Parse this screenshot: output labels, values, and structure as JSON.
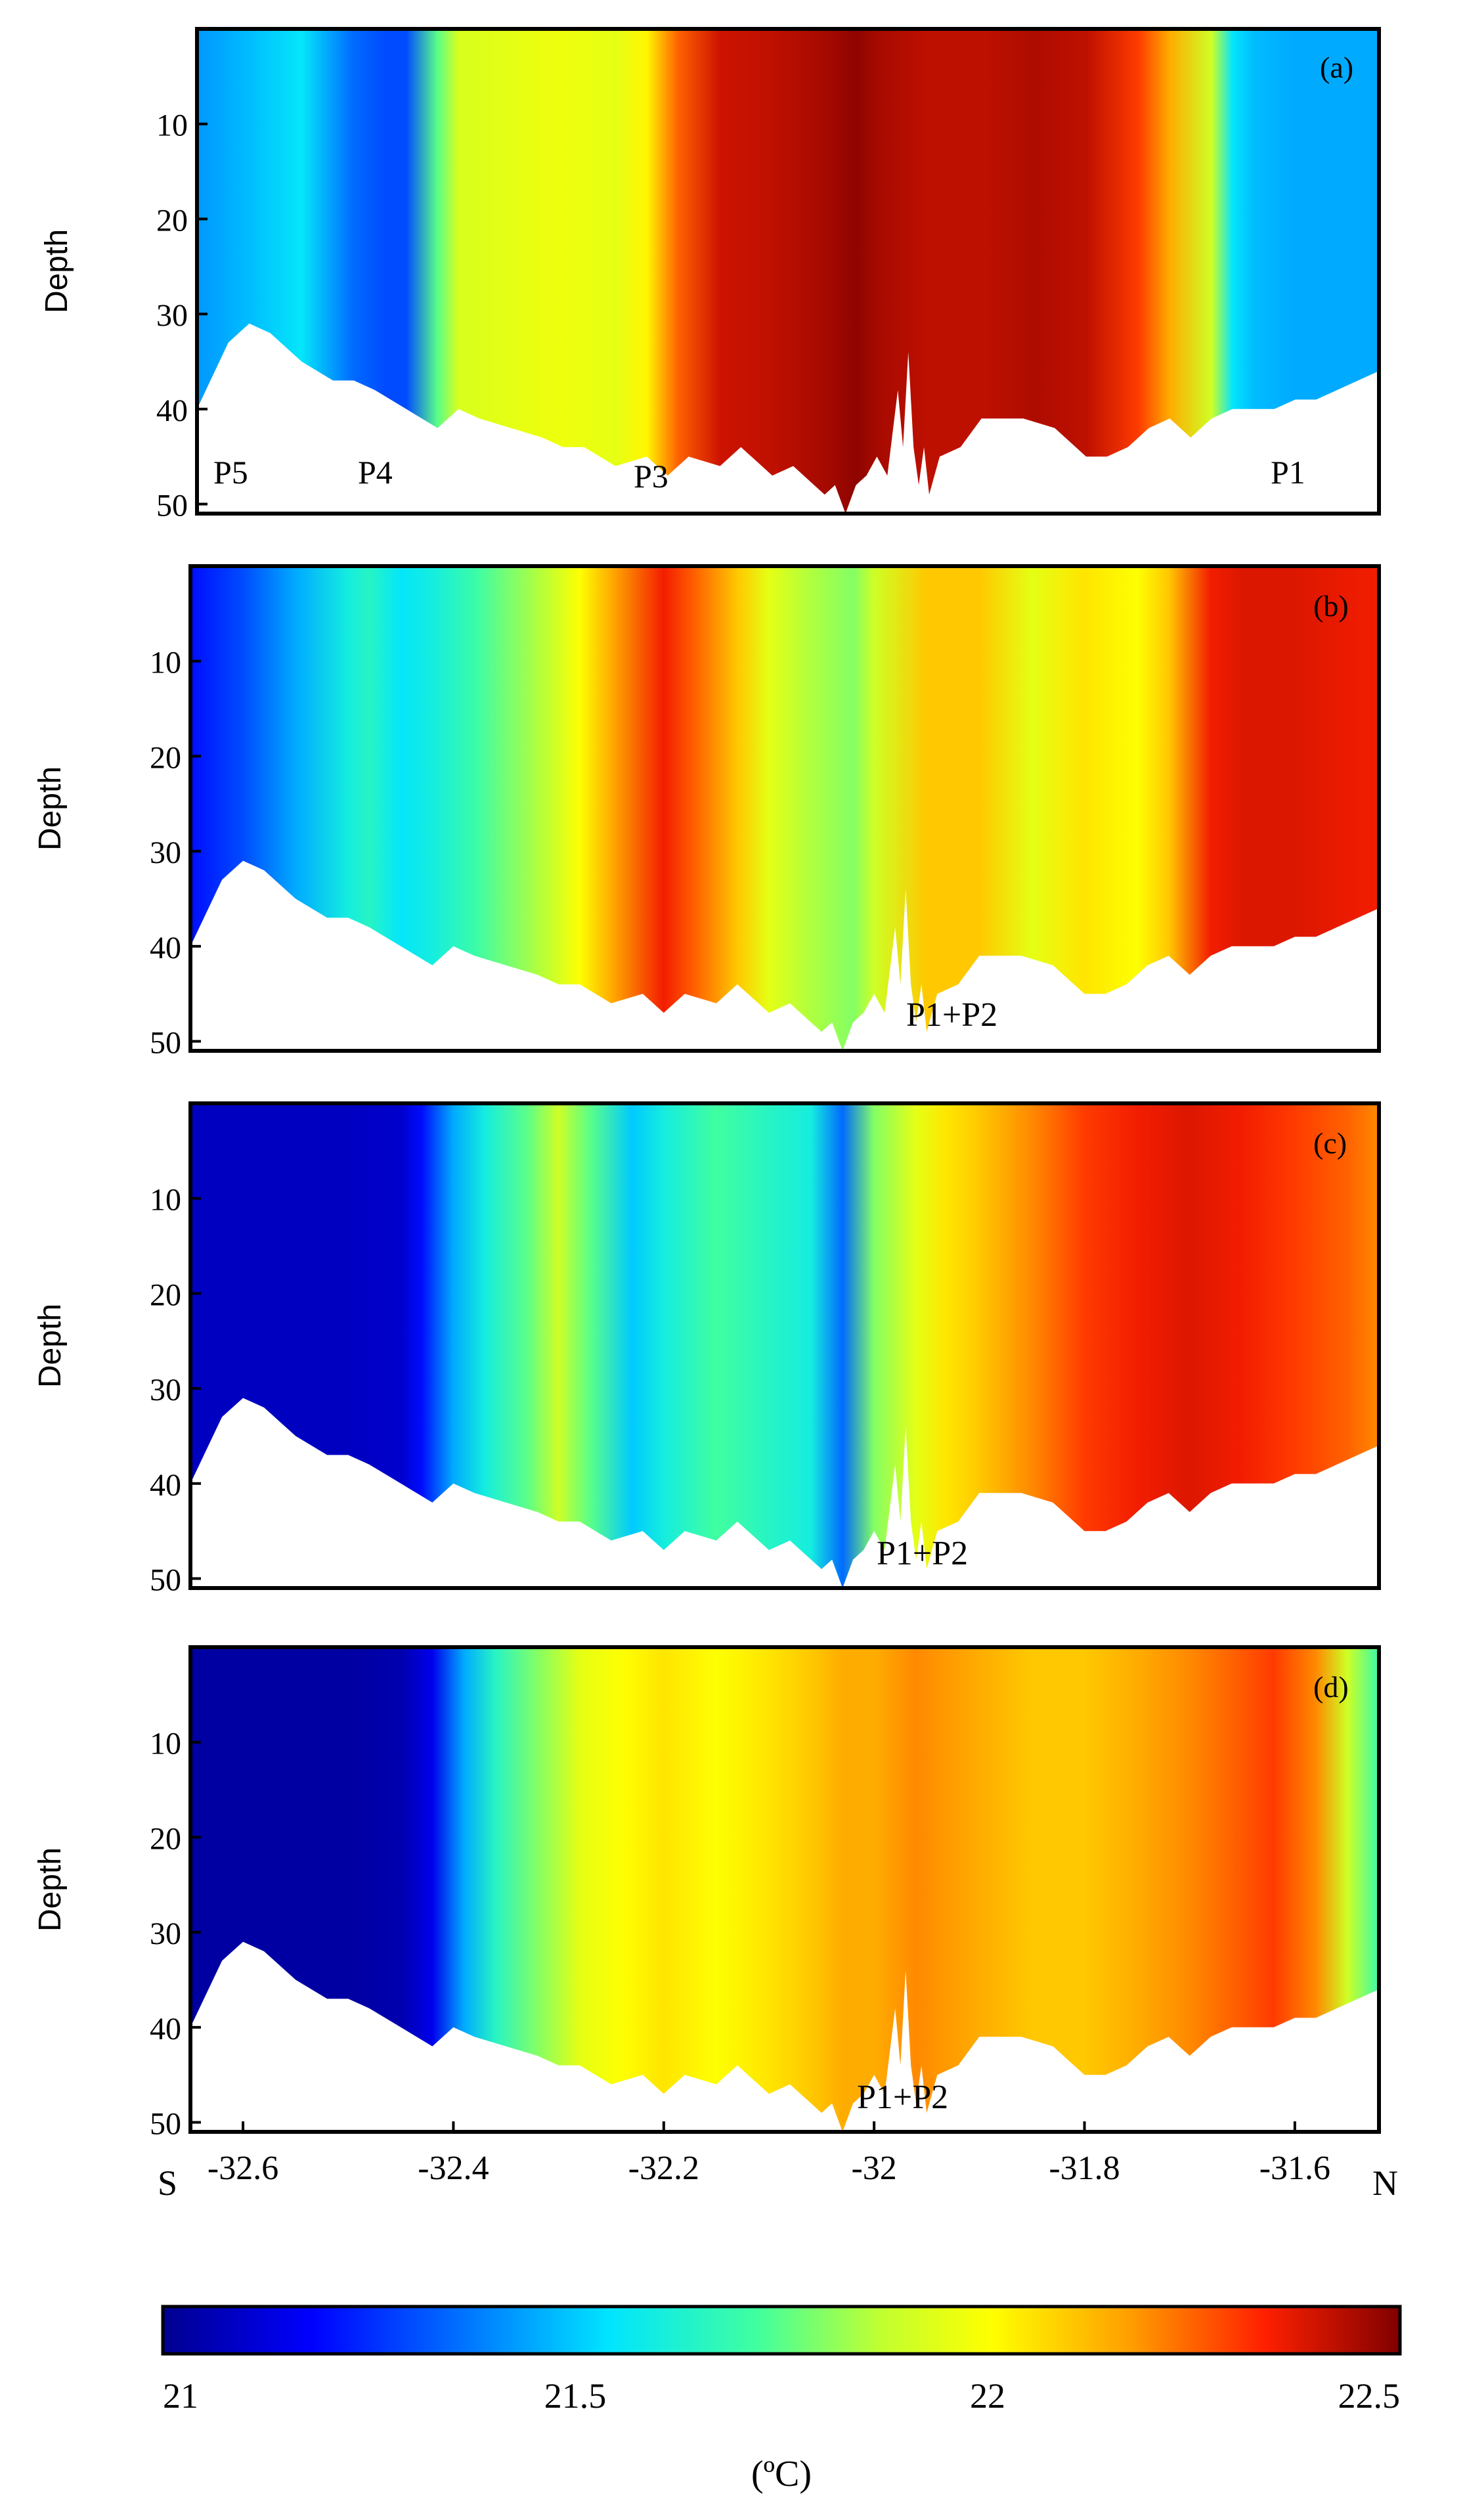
{
  "chart_data": {
    "type": "heatmap",
    "title": "",
    "variable_unit": "(ºC)",
    "colorbar": {
      "min": 21,
      "max": 22.5,
      "ticks": [
        21,
        21.5,
        22,
        22.5
      ],
      "tick_labels": [
        "21",
        "21.5",
        "22",
        "22.5"
      ],
      "colormap": "jet"
    },
    "x_axis": {
      "range": [
        -32.65,
        -31.52
      ],
      "ticks": [
        -32.6,
        -32.4,
        -32.2,
        -32,
        -31.8,
        -31.6
      ],
      "tick_labels": [
        "-32.6",
        "-32.4",
        "-32.2",
        "-32",
        "-31.8",
        "-31.6"
      ],
      "left_label": "S",
      "right_label": "N"
    },
    "y_axis": {
      "label": "Depth",
      "range": [
        0,
        51
      ],
      "inverted": true,
      "ticks": [
        10,
        20,
        30,
        40,
        50
      ],
      "tick_labels": [
        "10",
        "20",
        "30",
        "40",
        "50"
      ]
    },
    "bathymetry": {
      "lon": [
        -32.65,
        -32.62,
        -32.6,
        -32.58,
        -32.55,
        -32.52,
        -32.5,
        -32.48,
        -32.45,
        -32.42,
        -32.4,
        -32.38,
        -32.35,
        -32.32,
        -32.3,
        -32.28,
        -32.25,
        -32.22,
        -32.2,
        -32.18,
        -32.15,
        -32.13,
        -32.1,
        -32.08,
        -32.06,
        -32.05,
        -32.04,
        -32.03,
        -32.02,
        -32.01,
        -32.0,
        -31.99,
        -31.98,
        -31.975,
        -31.97,
        -31.965,
        -31.96,
        -31.955,
        -31.95,
        -31.94,
        -31.92,
        -31.9,
        -31.88,
        -31.86,
        -31.83,
        -31.8,
        -31.78,
        -31.76,
        -31.74,
        -31.72,
        -31.7,
        -31.68,
        -31.66,
        -31.64,
        -31.62,
        -31.6,
        -31.58,
        -31.56,
        -31.54,
        -31.52
      ],
      "depth": [
        40,
        33,
        31,
        32,
        35,
        37,
        37,
        38,
        40,
        42,
        40,
        41,
        42,
        43,
        44,
        44,
        46,
        45,
        47,
        45,
        46,
        44,
        47,
        46,
        48,
        49,
        48,
        51,
        48,
        47,
        45,
        47,
        38,
        44,
        34,
        44,
        48,
        44,
        49,
        45,
        44,
        41,
        41,
        41,
        42,
        45,
        45,
        44,
        42,
        41,
        43,
        41,
        40,
        40,
        40,
        39,
        39,
        38,
        37,
        36
      ]
    },
    "panels": [
      {
        "id": "a",
        "label": "(a)",
        "annotations": [
          "P5",
          "P4",
          "P3",
          "P1"
        ],
        "section_profile": {
          "lon": [
            -32.65,
            -32.6,
            -32.55,
            -32.5,
            -32.47,
            -32.45,
            -32.42,
            -32.4,
            -32.35,
            -32.3,
            -32.25,
            -32.22,
            -32.19,
            -32.15,
            -32.1,
            -32.05,
            -32.02,
            -32.0,
            -31.95,
            -31.9,
            -31.85,
            -31.8,
            -31.75,
            -31.72,
            -31.68,
            -31.66,
            -31.64,
            -31.6,
            -31.52
          ],
          "temp": [
            21.42,
            21.48,
            21.55,
            21.35,
            21.3,
            21.3,
            21.75,
            21.92,
            21.95,
            21.97,
            21.95,
            22.02,
            22.25,
            22.4,
            22.42,
            22.45,
            22.48,
            22.45,
            22.42,
            22.42,
            22.44,
            22.42,
            22.3,
            22.15,
            21.9,
            21.55,
            21.48,
            21.45,
            21.45
          ]
        }
      },
      {
        "id": "b",
        "label": "(b)",
        "annotations": [
          "P1+P2"
        ],
        "section_profile": {
          "lon": [
            -32.65,
            -32.6,
            -32.55,
            -32.5,
            -32.48,
            -32.45,
            -32.42,
            -32.38,
            -32.32,
            -32.28,
            -32.25,
            -32.2,
            -32.17,
            -32.13,
            -32.1,
            -32.06,
            -32.02,
            -32.0,
            -31.95,
            -31.9,
            -31.85,
            -31.8,
            -31.75,
            -31.72,
            -31.68,
            -31.65,
            -31.6,
            -31.52
          ],
          "temp": [
            21.2,
            21.3,
            21.45,
            21.6,
            21.65,
            21.55,
            21.6,
            21.7,
            21.85,
            22.0,
            22.15,
            22.35,
            22.25,
            22.1,
            21.95,
            21.85,
            21.8,
            21.9,
            22.1,
            22.1,
            21.95,
            22.05,
            22.0,
            22.1,
            22.35,
            22.38,
            22.38,
            22.35
          ]
        }
      },
      {
        "id": "c",
        "label": "(c)",
        "annotations": [
          "P1+P2"
        ],
        "section_profile": {
          "lon": [
            -32.65,
            -32.55,
            -32.5,
            -32.45,
            -32.43,
            -32.4,
            -32.37,
            -32.33,
            -32.3,
            -32.27,
            -32.23,
            -32.2,
            -32.15,
            -32.1,
            -32.06,
            -32.03,
            -32.0,
            -31.96,
            -31.93,
            -31.9,
            -31.85,
            -31.8,
            -31.75,
            -31.7,
            -31.65,
            -31.6,
            -31.55,
            -31.52
          ],
          "temp": [
            21.08,
            21.08,
            21.08,
            21.1,
            21.2,
            21.45,
            21.6,
            21.75,
            21.9,
            21.75,
            21.5,
            21.6,
            21.72,
            21.65,
            21.6,
            21.35,
            21.8,
            21.95,
            22.05,
            22.1,
            22.2,
            22.3,
            22.35,
            22.38,
            22.35,
            22.3,
            22.25,
            22.2
          ]
        }
      },
      {
        "id": "d",
        "label": "(d)",
        "annotations": [
          "P1+P2"
        ],
        "section_profile": {
          "lon": [
            -32.65,
            -32.5,
            -32.45,
            -32.42,
            -32.39,
            -32.36,
            -32.32,
            -32.28,
            -32.24,
            -32.2,
            -32.15,
            -32.1,
            -32.06,
            -32.03,
            -32.0,
            -31.96,
            -31.9,
            -31.85,
            -31.8,
            -31.75,
            -31.7,
            -31.66,
            -31.62,
            -31.58,
            -31.55,
            -31.52
          ],
          "temp": [
            21.03,
            21.03,
            21.05,
            21.15,
            21.45,
            21.65,
            21.8,
            21.95,
            22.0,
            22.05,
            22.0,
            22.05,
            22.1,
            22.15,
            22.15,
            22.2,
            22.15,
            22.1,
            22.1,
            22.15,
            22.2,
            22.25,
            22.3,
            22.2,
            21.9,
            21.7
          ]
        }
      }
    ]
  }
}
